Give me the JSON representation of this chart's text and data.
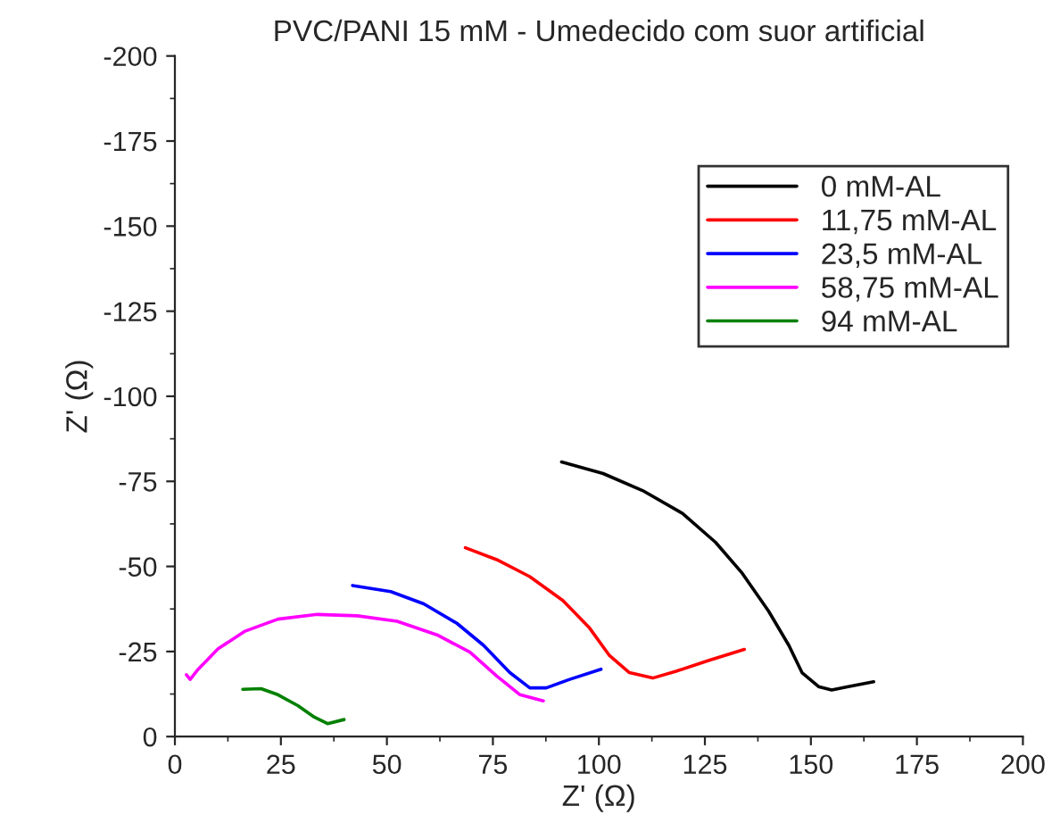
{
  "chart_data": {
    "type": "line",
    "title": "PVC/PANI 15 mM - Umedecido com suor artificial",
    "xlabel": "Z' (Ω)",
    "ylabel": "Z' (Ω)",
    "xlim": [
      0,
      200
    ],
    "xticks": [
      0,
      25,
      50,
      75,
      100,
      125,
      150,
      175,
      200
    ],
    "ylim": [
      0,
      -200
    ],
    "yticks": [
      0,
      -25,
      -50,
      -75,
      -100,
      -125,
      -150,
      -175,
      -200
    ],
    "grid": false,
    "legend": "top right",
    "marker": "none",
    "line_style": "solid",
    "series": [
      {
        "name": "0 mM-AL",
        "color": "#000000",
        "x": [
          91.2,
          101,
          110.3,
          119.7,
          127.5,
          133.8,
          140,
          144.8,
          147.9,
          151.8,
          154.9,
          158.8,
          164.8
        ],
        "values": [
          -80.7,
          -77.3,
          -72.3,
          -65.6,
          -57.1,
          -48,
          -36.9,
          -26.8,
          -18.8,
          -14.7,
          -13.7,
          -14.7,
          -16.1
        ]
      },
      {
        "name": "11,75 mM-AL",
        "color": "#ff0000",
        "x": [
          68.5,
          75.9,
          83.7,
          91.5,
          97.8,
          102.5,
          107.2,
          112.7,
          118.2,
          126,
          134.3
        ],
        "values": [
          -55.5,
          -52,
          -47,
          -40,
          -31.9,
          -23.8,
          -18.8,
          -17.2,
          -19.2,
          -22.4,
          -25.6
        ]
      },
      {
        "name": "23,5 mM-AL",
        "color": "#0000ff",
        "x": [
          41.9,
          50.9,
          58.7,
          66.5,
          72.8,
          79,
          83.7,
          87.6,
          93.1,
          100.5
        ],
        "values": [
          -44.4,
          -42.6,
          -39,
          -33.3,
          -26.8,
          -18.8,
          -14.3,
          -14.3,
          -16.8,
          -19.8
        ]
      },
      {
        "name": "58,75 mM-AL",
        "color": "#ff00ff",
        "x": [
          2.7,
          3.6,
          5.5,
          10.2,
          16.4,
          24.3,
          33.6,
          43,
          52.4,
          61.8,
          69.6,
          75.9,
          81.4,
          86.9
        ],
        "values": [
          -18.2,
          -16.8,
          -19.8,
          -25.8,
          -30.9,
          -34.5,
          -35.9,
          -35.5,
          -33.9,
          -29.9,
          -24.8,
          -17.8,
          -12.3,
          -10.5
        ]
      },
      {
        "name": "94 mM-AL",
        "color": "#008000",
        "x": [
          16,
          20.3,
          24.3,
          29,
          32.9,
          36,
          39.9
        ],
        "values": [
          -13.9,
          -14.1,
          -12.3,
          -9.1,
          -5.7,
          -3.8,
          -5
        ]
      }
    ]
  }
}
